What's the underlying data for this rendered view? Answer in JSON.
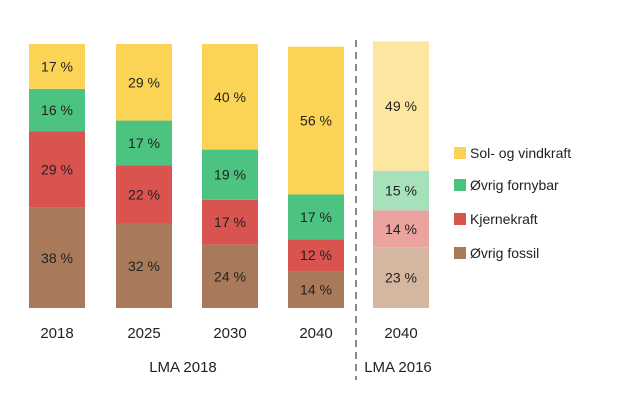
{
  "chart_data": {
    "type": "bar",
    "stacked": true,
    "title": "",
    "xlabel": "",
    "ylabel": "",
    "ylim": [
      0,
      100
    ],
    "grid": false,
    "legend_position": "right",
    "categories": [
      "2018",
      "2025",
      "2030",
      "2040",
      "2040"
    ],
    "groups": [
      {
        "label": "LMA 2018",
        "categories": [
          0,
          1,
          2,
          3
        ]
      },
      {
        "label": "LMA 2016",
        "categories": [
          4
        ]
      }
    ],
    "faded_categories": [
      4
    ],
    "series": [
      {
        "name": "Øvrig fossil",
        "color": "#A97A5A",
        "faded_color": "#D5B6A1",
        "values": [
          38,
          32,
          24,
          14,
          23
        ]
      },
      {
        "name": "Kjernekraft",
        "color": "#D9534F",
        "faded_color": "#EBA3A0",
        "values": [
          29,
          22,
          17,
          12,
          14
        ]
      },
      {
        "name": "Øvrig fornybar",
        "color": "#4DC381",
        "faded_color": "#A6E1BC",
        "values": [
          16,
          17,
          19,
          17,
          15
        ]
      },
      {
        "name": "Sol- og vindkraft",
        "color": "#FBD456",
        "faded_color": "#FDE6A0",
        "values": [
          17,
          29,
          40,
          56,
          49
        ]
      }
    ],
    "value_suffix": " %",
    "legend_order": [
      "Sol- og vindkraft",
      "Øvrig fornybar",
      "Kjernekraft",
      "Øvrig fossil"
    ]
  }
}
